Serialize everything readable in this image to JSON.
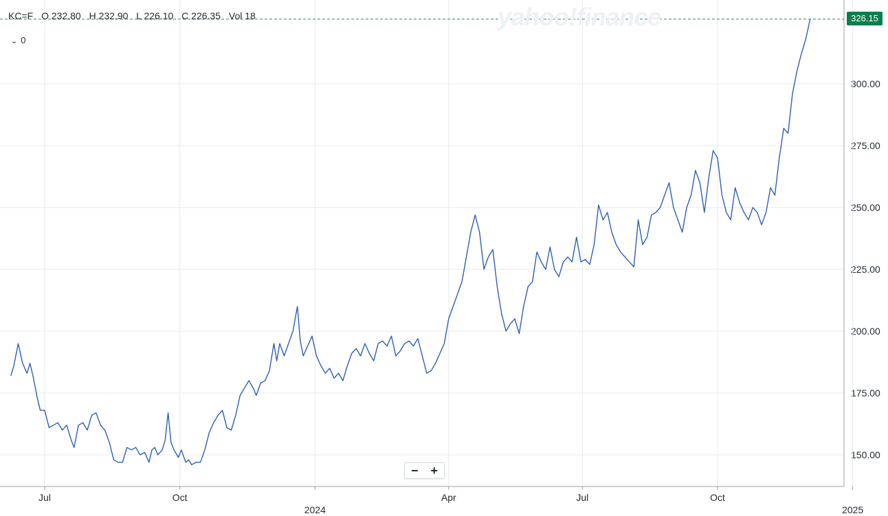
{
  "legend": {
    "symbol": "KC=F",
    "open": "O 232.80",
    "high": "H 232.90",
    "low": "L 226.10",
    "close": "C 226.35",
    "volume": "Vol 18"
  },
  "indicator_toggle": {
    "chevron": "⌄",
    "count": "0"
  },
  "watermark": "yahoo!finance",
  "zoom": {
    "minus": "−",
    "plus": "+"
  },
  "last_price_label": "326.15",
  "colors": {
    "line": "#2d5fb4",
    "grid": "#e6e9ee",
    "axis_text": "#232a31",
    "price_tag": "#0e7d4e",
    "price_line": "#1c8a5c"
  },
  "chart_data": {
    "type": "line",
    "y_axis": {
      "ticks": [
        150,
        175,
        200,
        225,
        250,
        275,
        300
      ],
      "tick_labels": [
        "150.00",
        "175.00",
        "200.00",
        "225.00",
        "250.00",
        "275.00",
        "300.00"
      ],
      "position": "right"
    },
    "x_axis": {
      "tick_labels": [
        {
          "label": "Jul",
          "date": "2023-07-01"
        },
        {
          "label": "Oct",
          "date": "2023-10-01"
        },
        {
          "label": "2024",
          "date": "2024-01-01",
          "bold": true
        },
        {
          "label": "Apr",
          "date": "2024-04-01"
        },
        {
          "label": "Jul",
          "date": "2024-07-01"
        },
        {
          "label": "Oct",
          "date": "2024-10-01"
        },
        {
          "label": "2025",
          "date": "2025-01-01",
          "bold": true
        }
      ]
    },
    "grid": true,
    "last_value": 326.15,
    "series": [
      {
        "points": [
          [
            "2023-06-08",
            182
          ],
          [
            "2023-06-10",
            186
          ],
          [
            "2023-06-13",
            195
          ],
          [
            "2023-06-16",
            187
          ],
          [
            "2023-06-19",
            183
          ],
          [
            "2023-06-21",
            187
          ],
          [
            "2023-06-23",
            182
          ],
          [
            "2023-06-26",
            173
          ],
          [
            "2023-06-28",
            168
          ],
          [
            "2023-07-01",
            168
          ],
          [
            "2023-07-04",
            161
          ],
          [
            "2023-07-07",
            162
          ],
          [
            "2023-07-10",
            163
          ],
          [
            "2023-07-13",
            160
          ],
          [
            "2023-07-16",
            162
          ],
          [
            "2023-07-19",
            156
          ],
          [
            "2023-07-21",
            153
          ],
          [
            "2023-07-24",
            162
          ],
          [
            "2023-07-27",
            163
          ],
          [
            "2023-07-30",
            160
          ],
          [
            "2023-08-02",
            166
          ],
          [
            "2023-08-05",
            167
          ],
          [
            "2023-08-08",
            162
          ],
          [
            "2023-08-11",
            160
          ],
          [
            "2023-08-14",
            155
          ],
          [
            "2023-08-17",
            148
          ],
          [
            "2023-08-20",
            147
          ],
          [
            "2023-08-23",
            147
          ],
          [
            "2023-08-26",
            153
          ],
          [
            "2023-08-29",
            152
          ],
          [
            "2023-09-01",
            153
          ],
          [
            "2023-09-04",
            150
          ],
          [
            "2023-09-07",
            151
          ],
          [
            "2023-09-10",
            147
          ],
          [
            "2023-09-12",
            152
          ],
          [
            "2023-09-14",
            153
          ],
          [
            "2023-09-16",
            150
          ],
          [
            "2023-09-19",
            152
          ],
          [
            "2023-09-21",
            156
          ],
          [
            "2023-09-23",
            167
          ],
          [
            "2023-09-25",
            155
          ],
          [
            "2023-09-27",
            152
          ],
          [
            "2023-09-30",
            149
          ],
          [
            "2023-10-02",
            152
          ],
          [
            "2023-10-05",
            147
          ],
          [
            "2023-10-07",
            148
          ],
          [
            "2023-10-09",
            146
          ],
          [
            "2023-10-12",
            147
          ],
          [
            "2023-10-15",
            147
          ],
          [
            "2023-10-18",
            152
          ],
          [
            "2023-10-21",
            159
          ],
          [
            "2023-10-24",
            163
          ],
          [
            "2023-10-27",
            166
          ],
          [
            "2023-10-30",
            168
          ],
          [
            "2023-11-02",
            161
          ],
          [
            "2023-11-05",
            160
          ],
          [
            "2023-11-08",
            166
          ],
          [
            "2023-11-11",
            174
          ],
          [
            "2023-11-14",
            177
          ],
          [
            "2023-11-17",
            180
          ],
          [
            "2023-11-20",
            177
          ],
          [
            "2023-11-22",
            174
          ],
          [
            "2023-11-25",
            179
          ],
          [
            "2023-11-28",
            180
          ],
          [
            "2023-12-01",
            184
          ],
          [
            "2023-12-04",
            195
          ],
          [
            "2023-12-06",
            188
          ],
          [
            "2023-12-08",
            195
          ],
          [
            "2023-12-11",
            190
          ],
          [
            "2023-12-14",
            195
          ],
          [
            "2023-12-17",
            200
          ],
          [
            "2023-12-20",
            210
          ],
          [
            "2023-12-22",
            196
          ],
          [
            "2023-12-24",
            190
          ],
          [
            "2023-12-27",
            194
          ],
          [
            "2023-12-30",
            198
          ],
          [
            "2024-01-02",
            190
          ],
          [
            "2024-01-05",
            186
          ],
          [
            "2024-01-08",
            183
          ],
          [
            "2024-01-11",
            185
          ],
          [
            "2024-01-14",
            181
          ],
          [
            "2024-01-17",
            183
          ],
          [
            "2024-01-20",
            180
          ],
          [
            "2024-01-23",
            186
          ],
          [
            "2024-01-26",
            191
          ],
          [
            "2024-01-29",
            193
          ],
          [
            "2024-02-01",
            190
          ],
          [
            "2024-02-04",
            195
          ],
          [
            "2024-02-07",
            191
          ],
          [
            "2024-02-10",
            188
          ],
          [
            "2024-02-13",
            195
          ],
          [
            "2024-02-16",
            196
          ],
          [
            "2024-02-19",
            194
          ],
          [
            "2024-02-22",
            198
          ],
          [
            "2024-02-25",
            190
          ],
          [
            "2024-02-28",
            192
          ],
          [
            "2024-03-02",
            195
          ],
          [
            "2024-03-05",
            196
          ],
          [
            "2024-03-08",
            194
          ],
          [
            "2024-03-11",
            197
          ],
          [
            "2024-03-14",
            190
          ],
          [
            "2024-03-17",
            183
          ],
          [
            "2024-03-20",
            184
          ],
          [
            "2024-03-23",
            187
          ],
          [
            "2024-03-26",
            191
          ],
          [
            "2024-03-29",
            195
          ],
          [
            "2024-04-01",
            205
          ],
          [
            "2024-04-04",
            210
          ],
          [
            "2024-04-07",
            215
          ],
          [
            "2024-04-10",
            220
          ],
          [
            "2024-04-13",
            230
          ],
          [
            "2024-04-16",
            240
          ],
          [
            "2024-04-19",
            247
          ],
          [
            "2024-04-22",
            240
          ],
          [
            "2024-04-25",
            225
          ],
          [
            "2024-04-28",
            230
          ],
          [
            "2024-05-01",
            233
          ],
          [
            "2024-05-04",
            218
          ],
          [
            "2024-05-07",
            207
          ],
          [
            "2024-05-10",
            200
          ],
          [
            "2024-05-13",
            203
          ],
          [
            "2024-05-16",
            205
          ],
          [
            "2024-05-19",
            199
          ],
          [
            "2024-05-22",
            210
          ],
          [
            "2024-05-25",
            218
          ],
          [
            "2024-05-28",
            220
          ],
          [
            "2024-05-31",
            232
          ],
          [
            "2024-06-03",
            228
          ],
          [
            "2024-06-06",
            225
          ],
          [
            "2024-06-09",
            234
          ],
          [
            "2024-06-12",
            225
          ],
          [
            "2024-06-15",
            222
          ],
          [
            "2024-06-18",
            228
          ],
          [
            "2024-06-21",
            230
          ],
          [
            "2024-06-24",
            228
          ],
          [
            "2024-06-27",
            238
          ],
          [
            "2024-06-30",
            228
          ],
          [
            "2024-07-03",
            229
          ],
          [
            "2024-07-06",
            227
          ],
          [
            "2024-07-09",
            235
          ],
          [
            "2024-07-12",
            251
          ],
          [
            "2024-07-15",
            245
          ],
          [
            "2024-07-18",
            248
          ],
          [
            "2024-07-21",
            240
          ],
          [
            "2024-07-24",
            235
          ],
          [
            "2024-07-27",
            232
          ],
          [
            "2024-07-30",
            230
          ],
          [
            "2024-08-02",
            228
          ],
          [
            "2024-08-05",
            226
          ],
          [
            "2024-08-08",
            245
          ],
          [
            "2024-08-11",
            235
          ],
          [
            "2024-08-14",
            238
          ],
          [
            "2024-08-17",
            247
          ],
          [
            "2024-08-20",
            248
          ],
          [
            "2024-08-23",
            250
          ],
          [
            "2024-08-26",
            255
          ],
          [
            "2024-08-29",
            260
          ],
          [
            "2024-09-01",
            250
          ],
          [
            "2024-09-04",
            245
          ],
          [
            "2024-09-07",
            240
          ],
          [
            "2024-09-10",
            250
          ],
          [
            "2024-09-13",
            255
          ],
          [
            "2024-09-16",
            265
          ],
          [
            "2024-09-19",
            260
          ],
          [
            "2024-09-22",
            248
          ],
          [
            "2024-09-25",
            262
          ],
          [
            "2024-09-28",
            273
          ],
          [
            "2024-10-01",
            270
          ],
          [
            "2024-10-04",
            255
          ],
          [
            "2024-10-07",
            248
          ],
          [
            "2024-10-10",
            245
          ],
          [
            "2024-10-13",
            258
          ],
          [
            "2024-10-16",
            252
          ],
          [
            "2024-10-19",
            248
          ],
          [
            "2024-10-22",
            245
          ],
          [
            "2024-10-25",
            250
          ],
          [
            "2024-10-28",
            248
          ],
          [
            "2024-10-31",
            243
          ],
          [
            "2024-11-03",
            248
          ],
          [
            "2024-11-06",
            258
          ],
          [
            "2024-11-09",
            255
          ],
          [
            "2024-11-12",
            270
          ],
          [
            "2024-11-15",
            282
          ],
          [
            "2024-11-18",
            280
          ],
          [
            "2024-11-21",
            296
          ],
          [
            "2024-11-24",
            305
          ],
          [
            "2024-11-27",
            312
          ],
          [
            "2024-11-30",
            318
          ],
          [
            "2024-12-03",
            326.15
          ]
        ]
      }
    ]
  }
}
